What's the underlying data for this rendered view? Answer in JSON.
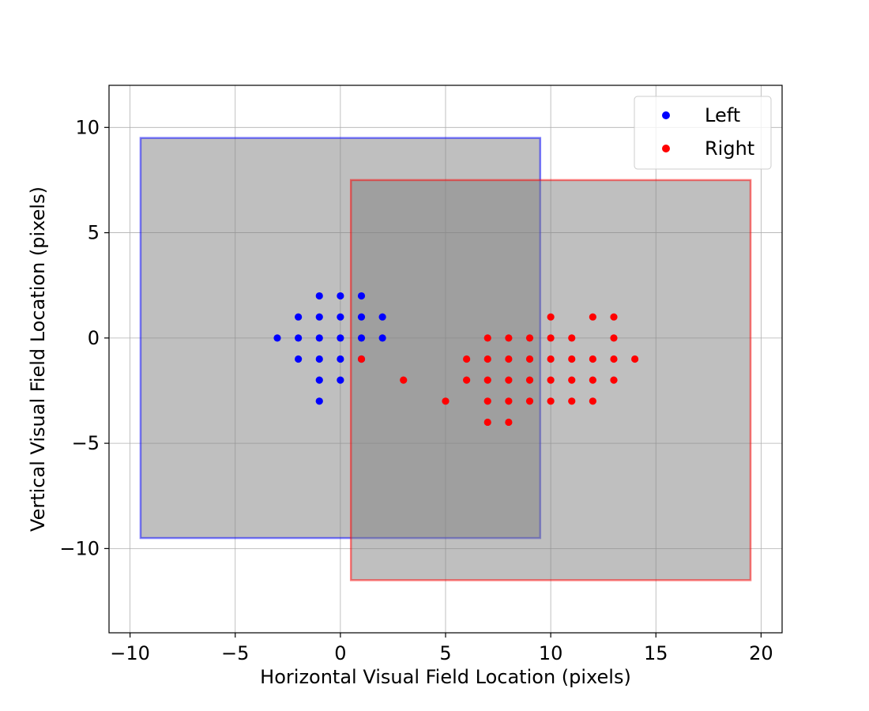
{
  "chart_data": {
    "type": "scatter",
    "title": "",
    "xlabel": "Horizontal Visual Field Location (pixels)",
    "ylabel": "Vertical Visual Field Location (pixels)",
    "xlim": [
      -11,
      21
    ],
    "ylim": [
      -14,
      12
    ],
    "xticks": [
      -10,
      -5,
      0,
      5,
      10,
      15,
      20
    ],
    "yticks": [
      -10,
      -5,
      0,
      5,
      10
    ],
    "xtick_labels": [
      "−10",
      "−5",
      "0",
      "5",
      "10",
      "15",
      "20"
    ],
    "ytick_labels": [
      "−10",
      "−5",
      "0",
      "5",
      "10"
    ],
    "grid": true,
    "legend_position": "top-right",
    "rectangles": [
      {
        "name": "Left",
        "x0": -9.5,
        "x1": 9.5,
        "y0": -9.5,
        "y1": 9.5,
        "fill": "#808080",
        "fill_opacity": 0.5,
        "edge": "#0000ff",
        "edge_opacity": 0.5
      },
      {
        "name": "Right",
        "x0": 0.5,
        "x1": 19.5,
        "y0": -11.5,
        "y1": 7.5,
        "fill": "#808080",
        "fill_opacity": 0.5,
        "edge": "#ff0000",
        "edge_opacity": 0.5
      }
    ],
    "series": [
      {
        "name": "Left",
        "color": "#0000ff",
        "points": [
          [
            -3,
            0
          ],
          [
            -2,
            1
          ],
          [
            -2,
            0
          ],
          [
            -2,
            -1
          ],
          [
            -1,
            2
          ],
          [
            -1,
            1
          ],
          [
            -1,
            0
          ],
          [
            -1,
            -1
          ],
          [
            -1,
            -2
          ],
          [
            -1,
            -3
          ],
          [
            0,
            2
          ],
          [
            0,
            1
          ],
          [
            0,
            0
          ],
          [
            0,
            -1
          ],
          [
            0,
            -2
          ],
          [
            1,
            2
          ],
          [
            1,
            1
          ],
          [
            1,
            0
          ],
          [
            1,
            -1
          ],
          [
            2,
            1
          ],
          [
            2,
            0
          ]
        ]
      },
      {
        "name": "Right",
        "color": "#ff0000",
        "points": [
          [
            1,
            -1
          ],
          [
            3,
            -2
          ],
          [
            5,
            -3
          ],
          [
            6,
            -1
          ],
          [
            6,
            -2
          ],
          [
            7,
            0
          ],
          [
            7,
            -1
          ],
          [
            7,
            -2
          ],
          [
            7,
            -3
          ],
          [
            7,
            -4
          ],
          [
            8,
            0
          ],
          [
            8,
            -1
          ],
          [
            8,
            -2
          ],
          [
            8,
            -3
          ],
          [
            8,
            -4
          ],
          [
            9,
            0
          ],
          [
            9,
            -1
          ],
          [
            9,
            -2
          ],
          [
            9,
            -3
          ],
          [
            10,
            1
          ],
          [
            10,
            0
          ],
          [
            10,
            -1
          ],
          [
            10,
            -2
          ],
          [
            10,
            -3
          ],
          [
            11,
            0
          ],
          [
            11,
            -1
          ],
          [
            11,
            -2
          ],
          [
            11,
            -3
          ],
          [
            12,
            1
          ],
          [
            12,
            -1
          ],
          [
            12,
            -2
          ],
          [
            12,
            -3
          ],
          [
            13,
            1
          ],
          [
            13,
            0
          ],
          [
            13,
            -1
          ],
          [
            13,
            -2
          ],
          [
            14,
            -1
          ]
        ]
      }
    ]
  }
}
